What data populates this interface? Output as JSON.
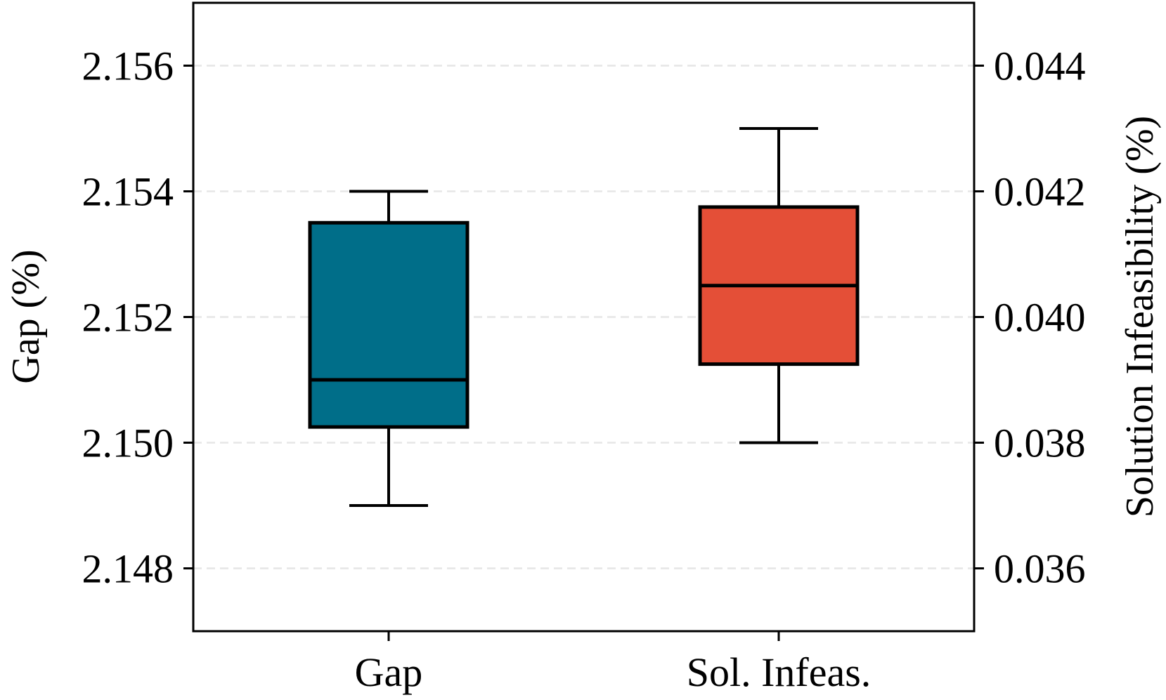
{
  "chart_data": {
    "type": "box",
    "title": "",
    "categories": [
      "Gap",
      "Sol. Infeas."
    ],
    "left_axis": {
      "label": "Gap (%)",
      "ylim": [
        2.147,
        2.157
      ],
      "ticks": [
        2.148,
        2.15,
        2.152,
        2.154,
        2.156
      ],
      "tick_labels": [
        "2.148",
        "2.150",
        "2.152",
        "2.154",
        "2.156"
      ]
    },
    "right_axis": {
      "label": "Solution Infeasibility (%)",
      "ylim": [
        0.035,
        0.045
      ],
      "ticks": [
        0.036,
        0.038,
        0.04,
        0.042,
        0.044
      ],
      "tick_labels": [
        "0.036",
        "0.038",
        "0.040",
        "0.042",
        "0.044"
      ]
    },
    "grid": "horizontal dashed",
    "boxes": [
      {
        "category": "Gap",
        "axis": "left",
        "color": "#006E89",
        "whisker_low": 2.149,
        "q1": 2.15025,
        "median": 2.151,
        "q3": 2.1535,
        "whisker_high": 2.154
      },
      {
        "category": "Sol. Infeas.",
        "axis": "right",
        "color": "#E44F37",
        "whisker_low": 0.038,
        "q1": 0.03925,
        "median": 0.0405,
        "q3": 0.04175,
        "whisker_high": 0.043
      }
    ]
  }
}
